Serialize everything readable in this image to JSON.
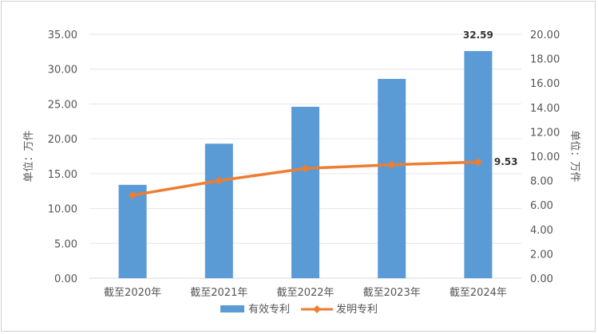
{
  "chart_data": {
    "type": "bar",
    "categories": [
      "截至2020年",
      "截至2021年",
      "截至2022年",
      "截至2023年",
      "截至2024年"
    ],
    "series": [
      {
        "name": "有效专利",
        "type": "bar",
        "axis": "left",
        "values": [
          13.4,
          19.3,
          24.6,
          28.6,
          32.59
        ],
        "color": "#5b9bd5"
      },
      {
        "name": "发明专利",
        "type": "line",
        "axis": "right",
        "values": [
          6.8,
          8.0,
          9.0,
          9.3,
          9.53
        ],
        "color": "#ed7d31"
      }
    ],
    "data_labels": [
      {
        "series": 0,
        "index": 4,
        "text": "32.59"
      },
      {
        "series": 1,
        "index": 4,
        "text": "9.53"
      }
    ],
    "y_left": {
      "label": "单位：万件",
      "ylim": [
        0,
        35
      ],
      "ticks": [
        "0.00",
        "5.00",
        "10.00",
        "15.00",
        "20.00",
        "25.00",
        "30.00",
        "35.00"
      ]
    },
    "y_right": {
      "label": "单位：万件",
      "ylim": [
        0,
        20
      ],
      "ticks": [
        "0.00",
        "2.00",
        "4.00",
        "6.00",
        "8.00",
        "10.00",
        "12.00",
        "14.00",
        "16.00",
        "18.00",
        "20.00"
      ]
    },
    "grid": true,
    "legend": "bottom"
  }
}
